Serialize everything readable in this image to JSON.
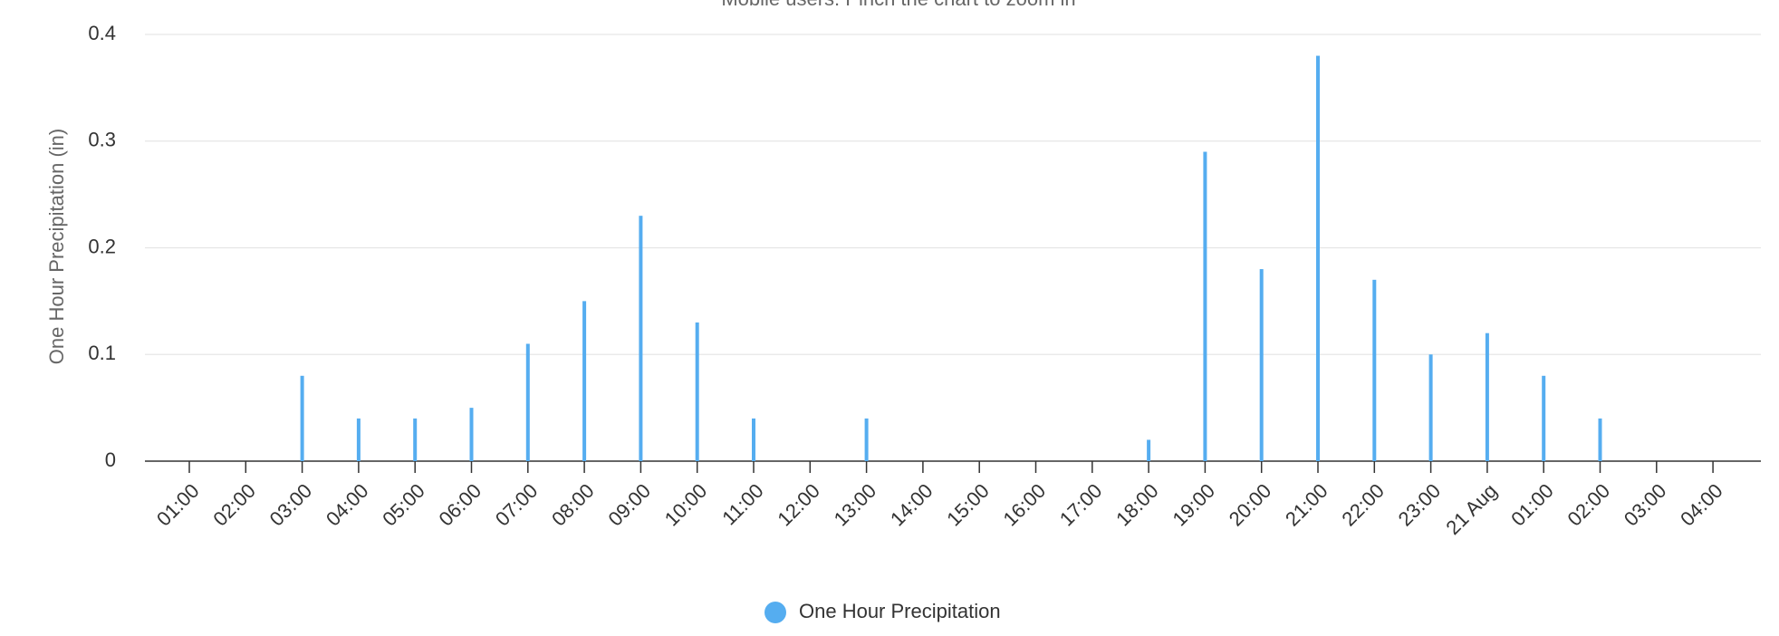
{
  "chart_data": {
    "type": "bar",
    "subtitle": "Mobile users: Pinch the chart to zoom in",
    "y_label": "One Hour Precipitation (in)",
    "categories": [
      "01:00",
      "02:00",
      "03:00",
      "04:00",
      "05:00",
      "06:00",
      "07:00",
      "08:00",
      "09:00",
      "10:00",
      "11:00",
      "12:00",
      "13:00",
      "14:00",
      "15:00",
      "16:00",
      "17:00",
      "18:00",
      "19:00",
      "20:00",
      "21:00",
      "22:00",
      "23:00",
      "21 Aug",
      "01:00",
      "02:00",
      "03:00",
      "04:00"
    ],
    "series": [
      {
        "name": "One Hour Precipitation",
        "color": "#55adf0",
        "values": [
          0,
          0,
          0.08,
          0.04,
          0.04,
          0.05,
          0.11,
          0.15,
          0.23,
          0.13,
          0.04,
          0,
          0.04,
          0,
          0,
          0,
          0,
          0.02,
          0.29,
          0.18,
          0.38,
          0.17,
          0.1,
          0.12,
          0.08,
          0.04,
          0,
          0
        ]
      }
    ],
    "ylim": [
      0,
      0.4
    ],
    "yticks": [
      0,
      0.1,
      0.2,
      0.3,
      0.4
    ],
    "grid": true
  }
}
